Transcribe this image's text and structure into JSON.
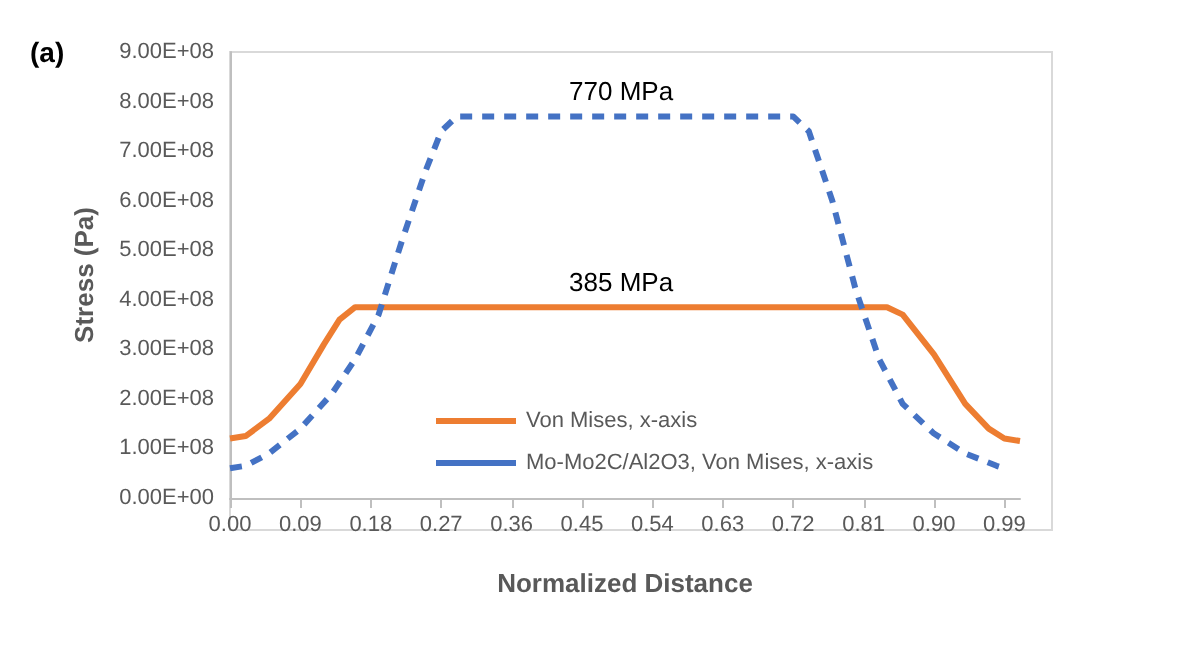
{
  "chart_data": {
    "type": "line",
    "title": "(a)",
    "xlabel": "Normalized Distance",
    "ylabel": "Stress (Pa)",
    "xlim": [
      0,
      1.01
    ],
    "ylim": [
      0,
      900000000
    ],
    "xticks": [
      {
        "value": 0,
        "label": "0.00"
      },
      {
        "value": 0.09,
        "label": "0.09"
      },
      {
        "value": 0.18,
        "label": "0.18"
      },
      {
        "value": 0.27,
        "label": "0.27"
      },
      {
        "value": 0.36,
        "label": "0.36"
      },
      {
        "value": 0.45,
        "label": "0.45"
      },
      {
        "value": 0.54,
        "label": "0.54"
      },
      {
        "value": 0.63,
        "label": "0.63"
      },
      {
        "value": 0.72,
        "label": "0.72"
      },
      {
        "value": 0.81,
        "label": "0.81"
      },
      {
        "value": 0.9,
        "label": "0.90"
      },
      {
        "value": 0.99,
        "label": "0.99"
      }
    ],
    "yticks": [
      {
        "value": 0,
        "label": "0.00E+00"
      },
      {
        "value": 100000000,
        "label": "1.00E+08"
      },
      {
        "value": 200000000,
        "label": "2.00E+08"
      },
      {
        "value": 300000000,
        "label": "3.00E+08"
      },
      {
        "value": 400000000,
        "label": "4.00E+08"
      },
      {
        "value": 500000000,
        "label": "5.00E+08"
      },
      {
        "value": 600000000,
        "label": "6.00E+08"
      },
      {
        "value": 700000000,
        "label": "7.00E+08"
      },
      {
        "value": 800000000,
        "label": "8.00E+08"
      },
      {
        "value": 900000000,
        "label": "9.00E+08"
      }
    ],
    "grid": false,
    "legend": "bottom",
    "marker": "none",
    "series": [
      {
        "name": "Von Mises, x-axis",
        "color": "#ed7d31",
        "line_style": "solid",
        "x": [
          0,
          0.02,
          0.05,
          0.09,
          0.12,
          0.14,
          0.16,
          0.84,
          0.86,
          0.9,
          0.94,
          0.97,
          0.99,
          1.01
        ],
        "values": [
          120000000,
          125000000,
          160000000,
          230000000,
          310000000,
          360000000,
          385000000,
          385000000,
          370000000,
          290000000,
          190000000,
          140000000,
          120000000,
          115000000
        ]
      },
      {
        "name": "Mo-Mo2C/Al2O3, Von Mises, x-axis",
        "color": "#4472c4",
        "line_style": "dashed",
        "x": [
          0,
          0.02,
          0.05,
          0.09,
          0.13,
          0.16,
          0.19,
          0.22,
          0.25,
          0.27,
          0.29,
          0.72,
          0.74,
          0.77,
          0.8,
          0.83,
          0.86,
          0.9,
          0.94,
          0.98,
          0.99
        ],
        "values": [
          60000000,
          65000000,
          90000000,
          140000000,
          210000000,
          280000000,
          370000000,
          520000000,
          660000000,
          740000000,
          770000000,
          770000000,
          740000000,
          600000000,
          420000000,
          280000000,
          190000000,
          130000000,
          90000000,
          65000000,
          60000000
        ]
      }
    ],
    "annotations": [
      {
        "text": "770 MPa",
        "x": 0.5,
        "y": 770000000
      },
      {
        "text": "385 MPa",
        "x": 0.5,
        "y": 385000000
      }
    ]
  }
}
